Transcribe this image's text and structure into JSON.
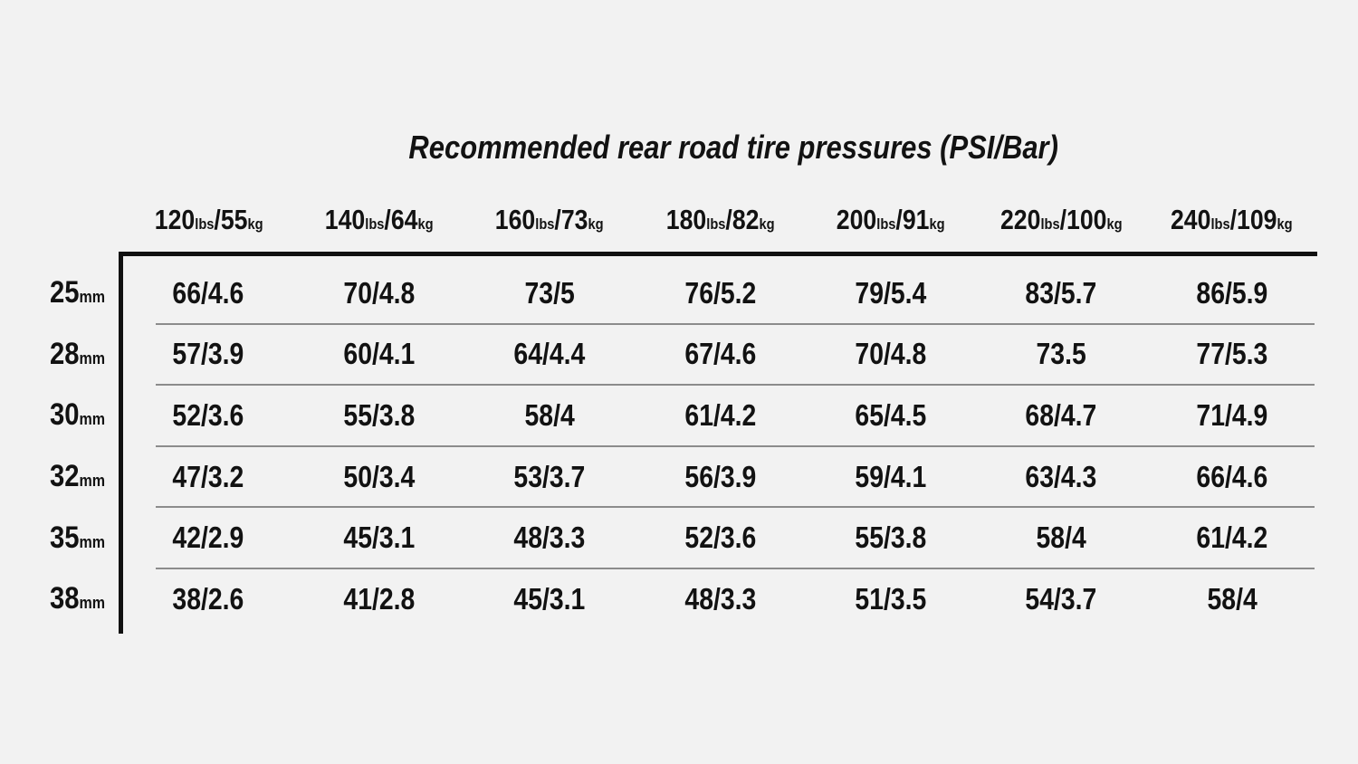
{
  "title": "Recommended rear road tire pressures (PSI/Bar)",
  "colors": {
    "background": "#f2f2f2",
    "text": "#121212",
    "frame_line": "#111111",
    "row_separator": "#8c8c8c"
  },
  "chart_data": {
    "type": "table",
    "title": "Recommended rear road tire pressures (PSI/Bar)",
    "units": {
      "weight": "lbs",
      "mass": "kg",
      "width": "mm"
    },
    "column_headers": [
      {
        "lbs": "120",
        "kg": "55",
        "label": "120lbs/55kg"
      },
      {
        "lbs": "140",
        "kg": "64",
        "label": "140lbs/64kg"
      },
      {
        "lbs": "160",
        "kg": "73",
        "label": "160lbs/73kg"
      },
      {
        "lbs": "180",
        "kg": "82",
        "label": "180lbs/82kg"
      },
      {
        "lbs": "200",
        "kg": "91",
        "label": "200lbs/91kg"
      },
      {
        "lbs": "220",
        "kg": "100",
        "label": "220lbs/100kg"
      },
      {
        "lbs": "240",
        "kg": "109",
        "label": "240lbs/109kg"
      }
    ],
    "rows": [
      {
        "tire_width_mm": "25",
        "values": [
          "66/4.6",
          "70/4.8",
          "73/5",
          "76/5.2",
          "79/5.4",
          "83/5.7",
          "86/5.9"
        ]
      },
      {
        "tire_width_mm": "28",
        "values": [
          "57/3.9",
          "60/4.1",
          "64/4.4",
          "67/4.6",
          "70/4.8",
          "73.5",
          "77/5.3"
        ]
      },
      {
        "tire_width_mm": "30",
        "values": [
          "52/3.6",
          "55/3.8",
          "58/4",
          "61/4.2",
          "65/4.5",
          "68/4.7",
          "71/4.9"
        ]
      },
      {
        "tire_width_mm": "32",
        "values": [
          "47/3.2",
          "50/3.4",
          "53/3.7",
          "56/3.9",
          "59/4.1",
          "63/4.3",
          "66/4.6"
        ]
      },
      {
        "tire_width_mm": "35",
        "values": [
          "42/2.9",
          "45/3.1",
          "48/3.3",
          "52/3.6",
          "55/3.8",
          "58/4",
          "61/4.2"
        ]
      },
      {
        "tire_width_mm": "38",
        "values": [
          "38/2.6",
          "41/2.8",
          "45/3.1",
          "48/3.3",
          "51/3.5",
          "54/3.7",
          "58/4"
        ]
      }
    ]
  }
}
